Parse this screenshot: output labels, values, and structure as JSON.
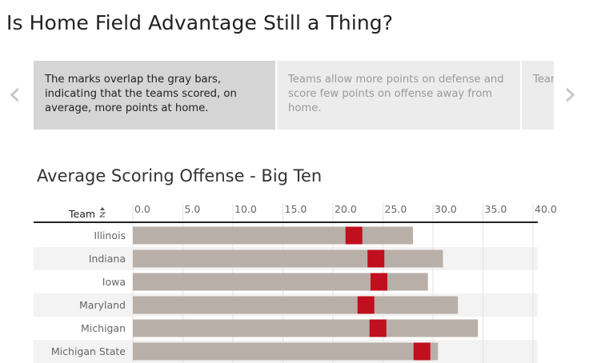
{
  "page": {
    "title": "Is Home Field Advantage Still a Thing?"
  },
  "carousel": {
    "prev_icon": "chevron-left-icon",
    "next_icon": "chevron-right-icon",
    "cards": [
      {
        "text": "The marks overlap the gray bars, indicating that the teams scored, on average, more points at home."
      },
      {
        "text": "Teams allow more points on defense and score few points on offense away from home."
      },
      {
        "text": "Team yard"
      }
    ]
  },
  "chart_data": {
    "type": "bar",
    "title": "Average Scoring Offense - Big Ten",
    "column_header": "Team",
    "sort_icon": "sort-ascending-icon",
    "xlim": [
      0,
      40
    ],
    "xticks": [
      "0.0",
      "5.0",
      "10.0",
      "15.0",
      "20.0",
      "25.0",
      "30.0",
      "35.0",
      "40.0"
    ],
    "categories": [
      "Illinois",
      "Indiana",
      "Iowa",
      "Maryland",
      "Michigan",
      "Michigan State"
    ],
    "series": [
      {
        "values": [
          28.0,
          31.0,
          29.5,
          32.5,
          34.5,
          30.5
        ]
      },
      {
        "values": [
          22.1,
          24.3,
          24.6,
          23.3,
          24.5,
          28.9
        ]
      }
    ],
    "colors": {
      "bar": "#b9afa9",
      "mark": "#c00f1e",
      "row_band": "#f3f3f3",
      "grid": "#e3e3e3"
    }
  }
}
